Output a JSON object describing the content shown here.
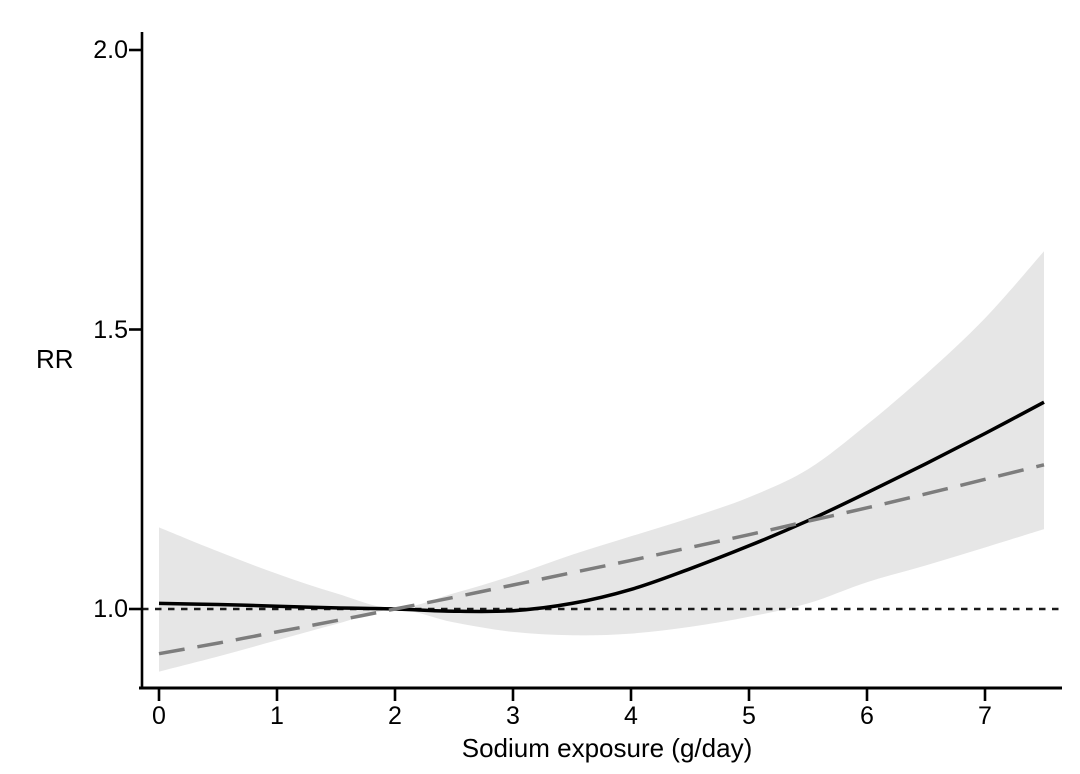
{
  "figure": {
    "background": "#ffffff",
    "axis_color": "#000000",
    "text_color": "#000000"
  },
  "chart_data": {
    "type": "line",
    "title": "",
    "xlabel": "Sodium exposure (g/day)",
    "ylabel": "RR",
    "xlim": [
      0,
      7.65
    ],
    "ylim": [
      0.859,
      2.03
    ],
    "x_ticks": [
      0,
      1,
      2,
      3,
      4,
      5,
      6,
      7
    ],
    "x_tick_labels": [
      "0",
      "1",
      "2",
      "3",
      "4",
      "5",
      "6",
      "7"
    ],
    "y_ticks": [
      1.0,
      1.5,
      2.0
    ],
    "y_tick_labels": [
      "1.0",
      "1.5",
      "2.0"
    ],
    "grid": false,
    "legend": "none",
    "reference_line": {
      "name": "null-effect-reference",
      "y": 1.0,
      "style": "dotted",
      "color": "#1a1a1a"
    },
    "x": [
      0,
      0.5,
      1,
      1.5,
      2,
      2.5,
      3,
      3.5,
      4,
      4.5,
      5,
      5.5,
      6,
      6.5,
      7,
      7.5
    ],
    "series": [
      {
        "name": "nonlinear spline estimate",
        "style": "solid",
        "color": "#000000",
        "values": [
          1.01,
          1.008,
          1.005,
          1.002,
          1.0,
          0.996,
          0.997,
          1.01,
          1.035,
          1.072,
          1.113,
          1.158,
          1.208,
          1.26,
          1.314,
          1.37
        ]
      },
      {
        "name": "linear trend estimate",
        "style": "dashed",
        "color": "#7d7d7d",
        "values": [
          0.92,
          0.939,
          0.959,
          0.979,
          1.0,
          1.021,
          1.043,
          1.065,
          1.087,
          1.11,
          1.133,
          1.157,
          1.181,
          1.206,
          1.232,
          1.258
        ]
      }
    ],
    "band": {
      "name": "95% confidence band",
      "color": "#e6e6e6",
      "upper": [
        1.146,
        1.103,
        1.063,
        1.028,
        1.001,
        1.028,
        1.06,
        1.097,
        1.13,
        1.163,
        1.2,
        1.25,
        1.33,
        1.42,
        1.52,
        1.64
      ],
      "lower": [
        0.888,
        0.915,
        0.944,
        0.973,
        0.999,
        0.976,
        0.959,
        0.953,
        0.956,
        0.968,
        0.986,
        1.01,
        1.048,
        1.078,
        1.11,
        1.143
      ]
    }
  }
}
